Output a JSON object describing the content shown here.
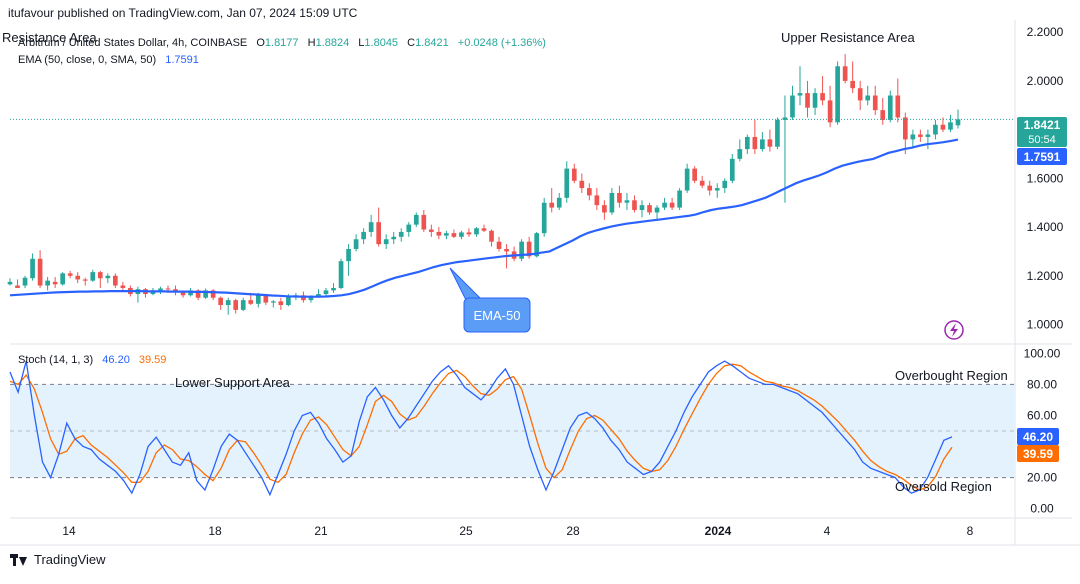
{
  "header": {
    "publisher": "itufavour published on TradingView.com, Jan 07, 2024 15:09 UTC",
    "symbol": "Arbitrum / United States Dollar, 4h, COINBASE",
    "ohlc": [
      {
        "k": "O",
        "v": "1.8177"
      },
      {
        "k": "H",
        "v": "1.8824"
      },
      {
        "k": "L",
        "v": "1.8045"
      },
      {
        "k": "C",
        "v": "1.8421"
      }
    ],
    "change": "+0.0248 (+1.36%)",
    "ema_label": "EMA (50, close, 0, SMA, 50)",
    "ema_value": "1.7591",
    "stoch_label": "Stoch (14, 1, 3)",
    "stoch_k": "46.20",
    "stoch_d": "39.59"
  },
  "annotations": {
    "resistance_left": "Resistance Area",
    "upper_resistance": "Upper Resistance Area",
    "ema_callout": "EMA-50",
    "lower_support": "Lower Support Area",
    "overbought": "Overbought Region",
    "oversold": "Oversold Region"
  },
  "price_tags": {
    "last_price": "1.8421",
    "countdown": "50:54",
    "ema": "1.7591"
  },
  "footer": {
    "brand": "TradingView"
  },
  "colors": {
    "up": "#26a69a",
    "down": "#ef5350",
    "ema": "#2962ff",
    "stoch_k": "#2962ff",
    "stoch_d": "#ff6d00",
    "band": "#e3f2fd",
    "callout": "#5b9cf6"
  },
  "chart_data": [
    {
      "type": "candlestick",
      "title": "Arbitrum / United States Dollar, 4h, COINBASE",
      "x_ticks": [
        "14",
        "18",
        "21",
        "25",
        "28",
        "2024",
        "4",
        "8"
      ],
      "y_ticks": [
        "1.0000",
        "1.2000",
        "1.4000",
        "1.6000",
        "1.8000",
        "2.0000",
        "2.2000"
      ],
      "ylim": [
        0.92,
        2.25
      ],
      "last_close": 1.8421,
      "grid": false,
      "candles": [
        [
          1.165,
          1.19,
          1.16,
          1.175
        ],
        [
          1.16,
          1.185,
          1.15,
          1.15
        ],
        [
          1.16,
          1.2,
          1.15,
          1.192
        ],
        [
          1.19,
          1.292,
          1.18,
          1.27
        ],
        [
          1.27,
          1.305,
          1.15,
          1.16
        ],
        [
          1.16,
          1.195,
          1.14,
          1.18
        ],
        [
          1.175,
          1.195,
          1.15,
          1.165
        ],
        [
          1.165,
          1.215,
          1.16,
          1.21
        ],
        [
          1.21,
          1.22,
          1.19,
          1.2
        ],
        [
          1.2,
          1.215,
          1.17,
          1.185
        ],
        [
          1.185,
          1.192,
          1.16,
          1.18
        ],
        [
          1.18,
          1.225,
          1.175,
          1.215
        ],
        [
          1.215,
          1.22,
          1.15,
          1.19
        ],
        [
          1.19,
          1.21,
          1.17,
          1.2
        ],
        [
          1.2,
          1.21,
          1.15,
          1.16
        ],
        [
          1.16,
          1.175,
          1.135,
          1.15
        ],
        [
          1.15,
          1.16,
          1.115,
          1.125
        ],
        [
          1.125,
          1.155,
          1.09,
          1.145
        ],
        [
          1.145,
          1.15,
          1.11,
          1.125
        ],
        [
          1.125,
          1.15,
          1.12,
          1.14
        ],
        [
          1.14,
          1.155,
          1.125,
          1.148
        ],
        [
          1.148,
          1.16,
          1.13,
          1.145
        ],
        [
          1.145,
          1.16,
          1.12,
          1.135
        ],
        [
          1.135,
          1.14,
          1.11,
          1.12
        ],
        [
          1.12,
          1.15,
          1.115,
          1.14
        ],
        [
          1.14,
          1.145,
          1.1,
          1.11
        ],
        [
          1.11,
          1.148,
          1.105,
          1.14
        ],
        [
          1.14,
          1.145,
          1.1,
          1.11
        ],
        [
          1.11,
          1.115,
          1.06,
          1.08
        ],
        [
          1.08,
          1.11,
          1.04,
          1.1
        ],
        [
          1.1,
          1.105,
          1.045,
          1.06
        ],
        [
          1.06,
          1.11,
          1.055,
          1.1
        ],
        [
          1.1,
          1.13,
          1.08,
          1.085
        ],
        [
          1.085,
          1.13,
          1.07,
          1.12
        ],
        [
          1.12,
          1.125,
          1.08,
          1.09
        ],
        [
          1.09,
          1.1,
          1.07,
          1.095
        ],
        [
          1.095,
          1.11,
          1.06,
          1.08
        ],
        [
          1.08,
          1.125,
          1.075,
          1.115
        ],
        [
          1.115,
          1.13,
          1.1,
          1.12
        ],
        [
          1.12,
          1.135,
          1.09,
          1.1
        ],
        [
          1.1,
          1.12,
          1.09,
          1.115
        ],
        [
          1.115,
          1.145,
          1.11,
          1.125
        ],
        [
          1.125,
          1.15,
          1.115,
          1.14
        ],
        [
          1.14,
          1.17,
          1.13,
          1.15
        ],
        [
          1.15,
          1.27,
          1.145,
          1.26
        ],
        [
          1.26,
          1.33,
          1.2,
          1.31
        ],
        [
          1.31,
          1.37,
          1.3,
          1.35
        ],
        [
          1.35,
          1.395,
          1.33,
          1.38
        ],
        [
          1.38,
          1.45,
          1.36,
          1.42
        ],
        [
          1.42,
          1.48,
          1.32,
          1.33
        ],
        [
          1.33,
          1.37,
          1.31,
          1.35
        ],
        [
          1.35,
          1.38,
          1.33,
          1.36
        ],
        [
          1.36,
          1.395,
          1.34,
          1.38
        ],
        [
          1.38,
          1.42,
          1.36,
          1.41
        ],
        [
          1.41,
          1.46,
          1.4,
          1.45
        ],
        [
          1.45,
          1.47,
          1.38,
          1.39
        ],
        [
          1.39,
          1.41,
          1.36,
          1.38
        ],
        [
          1.38,
          1.4,
          1.35,
          1.365
        ],
        [
          1.365,
          1.385,
          1.35,
          1.375
        ],
        [
          1.375,
          1.39,
          1.355,
          1.36
        ],
        [
          1.36,
          1.385,
          1.35,
          1.378
        ],
        [
          1.378,
          1.395,
          1.36,
          1.37
        ],
        [
          1.37,
          1.4,
          1.36,
          1.395
        ],
        [
          1.395,
          1.41,
          1.38,
          1.385
        ],
        [
          1.385,
          1.39,
          1.32,
          1.34
        ],
        [
          1.34,
          1.36,
          1.3,
          1.31
        ],
        [
          1.31,
          1.33,
          1.23,
          1.3
        ],
        [
          1.3,
          1.32,
          1.26,
          1.27
        ],
        [
          1.27,
          1.35,
          1.26,
          1.34
        ],
        [
          1.34,
          1.36,
          1.27,
          1.28
        ],
        [
          1.28,
          1.38,
          1.275,
          1.375
        ],
        [
          1.375,
          1.52,
          1.36,
          1.5
        ],
        [
          1.5,
          1.56,
          1.46,
          1.48
        ],
        [
          1.48,
          1.54,
          1.47,
          1.52
        ],
        [
          1.52,
          1.67,
          1.5,
          1.64
        ],
        [
          1.64,
          1.66,
          1.58,
          1.59
        ],
        [
          1.59,
          1.62,
          1.54,
          1.56
        ],
        [
          1.56,
          1.58,
          1.51,
          1.53
        ],
        [
          1.53,
          1.56,
          1.47,
          1.49
        ],
        [
          1.49,
          1.51,
          1.43,
          1.46
        ],
        [
          1.46,
          1.56,
          1.45,
          1.54
        ],
        [
          1.54,
          1.57,
          1.48,
          1.5
        ],
        [
          1.5,
          1.54,
          1.47,
          1.51
        ],
        [
          1.51,
          1.53,
          1.46,
          1.47
        ],
        [
          1.47,
          1.51,
          1.44,
          1.49
        ],
        [
          1.49,
          1.5,
          1.45,
          1.46
        ],
        [
          1.46,
          1.49,
          1.43,
          1.48
        ],
        [
          1.48,
          1.52,
          1.47,
          1.5
        ],
        [
          1.5,
          1.52,
          1.47,
          1.48
        ],
        [
          1.48,
          1.56,
          1.47,
          1.55
        ],
        [
          1.55,
          1.66,
          1.54,
          1.64
        ],
        [
          1.64,
          1.65,
          1.58,
          1.59
        ],
        [
          1.59,
          1.61,
          1.56,
          1.57
        ],
        [
          1.57,
          1.59,
          1.53,
          1.55
        ],
        [
          1.55,
          1.58,
          1.52,
          1.56
        ],
        [
          1.56,
          1.6,
          1.54,
          1.59
        ],
        [
          1.59,
          1.7,
          1.58,
          1.68
        ],
        [
          1.68,
          1.76,
          1.67,
          1.72
        ],
        [
          1.72,
          1.78,
          1.7,
          1.77
        ],
        [
          1.77,
          1.84,
          1.7,
          1.72
        ],
        [
          1.72,
          1.79,
          1.71,
          1.76
        ],
        [
          1.76,
          1.8,
          1.71,
          1.73
        ],
        [
          1.73,
          1.85,
          1.72,
          1.84
        ],
        [
          1.84,
          1.94,
          1.5,
          1.85
        ],
        [
          1.85,
          1.98,
          1.84,
          1.94
        ],
        [
          1.94,
          2.06,
          1.9,
          1.95
        ],
        [
          1.95,
          2.0,
          1.85,
          1.89
        ],
        [
          1.89,
          1.97,
          1.86,
          1.95
        ],
        [
          1.95,
          2.02,
          1.9,
          1.92
        ],
        [
          1.92,
          1.98,
          1.81,
          1.83
        ],
        [
          1.83,
          2.08,
          1.82,
          2.06
        ],
        [
          2.06,
          2.11,
          1.99,
          2.0
        ],
        [
          2.0,
          2.08,
          1.95,
          1.97
        ],
        [
          1.97,
          2.0,
          1.88,
          1.92
        ],
        [
          1.92,
          1.98,
          1.9,
          1.94
        ],
        [
          1.94,
          1.98,
          1.86,
          1.88
        ],
        [
          1.88,
          1.93,
          1.82,
          1.84
        ],
        [
          1.84,
          1.96,
          1.83,
          1.94
        ],
        [
          1.94,
          2.01,
          1.83,
          1.85
        ],
        [
          1.85,
          1.87,
          1.7,
          1.76
        ],
        [
          1.76,
          1.8,
          1.73,
          1.78
        ],
        [
          1.78,
          1.8,
          1.75,
          1.77
        ],
        [
          1.77,
          1.8,
          1.72,
          1.78
        ],
        [
          1.78,
          1.84,
          1.76,
          1.82
        ],
        [
          1.82,
          1.85,
          1.79,
          1.8
        ],
        [
          1.8,
          1.86,
          1.79,
          1.83
        ],
        [
          1.8177,
          1.8824,
          1.8045,
          1.8421
        ]
      ],
      "ema50": [
        1.12,
        1.122,
        1.124,
        1.126,
        1.128,
        1.13,
        1.132,
        1.133,
        1.134,
        1.135,
        1.135,
        1.136,
        1.136,
        1.137,
        1.137,
        1.137,
        1.137,
        1.137,
        1.136,
        1.136,
        1.136,
        1.135,
        1.135,
        1.135,
        1.134,
        1.134,
        1.133,
        1.132,
        1.131,
        1.129,
        1.127,
        1.125,
        1.123,
        1.121,
        1.119,
        1.118,
        1.116,
        1.115,
        1.114,
        1.114,
        1.114,
        1.115,
        1.117,
        1.12,
        1.125,
        1.133,
        1.143,
        1.156,
        1.17,
        1.182,
        1.192,
        1.2,
        1.208,
        1.216,
        1.226,
        1.236,
        1.244,
        1.25,
        1.256,
        1.26,
        1.264,
        1.268,
        1.272,
        1.276,
        1.28,
        1.283,
        1.285,
        1.287,
        1.29,
        1.295,
        1.3,
        1.315,
        1.33,
        1.345,
        1.362,
        1.376,
        1.386,
        1.394,
        1.402,
        1.408,
        1.414,
        1.418,
        1.422,
        1.426,
        1.43,
        1.434,
        1.438,
        1.442,
        1.446,
        1.452,
        1.462,
        1.47,
        1.476,
        1.48,
        1.484,
        1.49,
        1.5,
        1.51,
        1.52,
        1.535,
        1.55,
        1.565,
        1.58,
        1.592,
        1.602,
        1.612,
        1.625,
        1.64,
        1.652,
        1.66,
        1.668,
        1.674,
        1.68,
        1.692,
        1.705,
        1.712,
        1.72,
        1.726,
        1.734,
        1.74,
        1.744,
        1.748,
        1.753,
        1.759
      ]
    },
    {
      "type": "line",
      "title": "Stoch (14, 1, 3)",
      "y_ticks": [
        "0.00",
        "20.00",
        "40.00",
        "60.00",
        "80.00",
        "100.00"
      ],
      "ylim": [
        -6,
        106
      ],
      "band": [
        20,
        80
      ],
      "midline": 50,
      "series": [
        {
          "name": "%K",
          "values": [
            88,
            75,
            95,
            60,
            30,
            20,
            35,
            55,
            45,
            40,
            38,
            32,
            28,
            24,
            18,
            10,
            22,
            40,
            46,
            38,
            30,
            28,
            36,
            18,
            12,
            25,
            40,
            48,
            44,
            36,
            28,
            20,
            9,
            22,
            35,
            50,
            60,
            62,
            55,
            45,
            38,
            30,
            34,
            56,
            72,
            78,
            70,
            60,
            52,
            58,
            66,
            74,
            82,
            88,
            92,
            86,
            78,
            74,
            70,
            76,
            84,
            90,
            80,
            60,
            40,
            25,
            12,
            24,
            38,
            52,
            60,
            62,
            58,
            52,
            44,
            38,
            30,
            26,
            22,
            24,
            30,
            40,
            50,
            62,
            72,
            80,
            88,
            92,
            95,
            92,
            88,
            84,
            82,
            80,
            80,
            78,
            76,
            74,
            70,
            66,
            62,
            56,
            50,
            44,
            38,
            30,
            26,
            24,
            22,
            20,
            14,
            10,
            12,
            20,
            32,
            44,
            46.2
          ]
        },
        {
          "name": "%D",
          "values": [
            82,
            80,
            86,
            77,
            62,
            45,
            35,
            37,
            45,
            47,
            41,
            37,
            33,
            28,
            23,
            17,
            17,
            24,
            36,
            41,
            38,
            32,
            31,
            27,
            22,
            18,
            26,
            38,
            44,
            43,
            36,
            28,
            19,
            17,
            22,
            36,
            48,
            57,
            59,
            54,
            46,
            38,
            34,
            40,
            54,
            69,
            73,
            69,
            61,
            57,
            59,
            66,
            74,
            81,
            87,
            89,
            85,
            79,
            74,
            73,
            77,
            83,
            85,
            77,
            60,
            42,
            26,
            20,
            25,
            38,
            50,
            58,
            60,
            57,
            51,
            45,
            37,
            31,
            26,
            24,
            25,
            31,
            40,
            51,
            61,
            71,
            80,
            87,
            92,
            93,
            92,
            88,
            85,
            82,
            81,
            79,
            78,
            76,
            73,
            70,
            66,
            61,
            56,
            50,
            44,
            37,
            31,
            27,
            24,
            22,
            19,
            15,
            12,
            14,
            21,
            32,
            39.59
          ]
        }
      ]
    }
  ]
}
